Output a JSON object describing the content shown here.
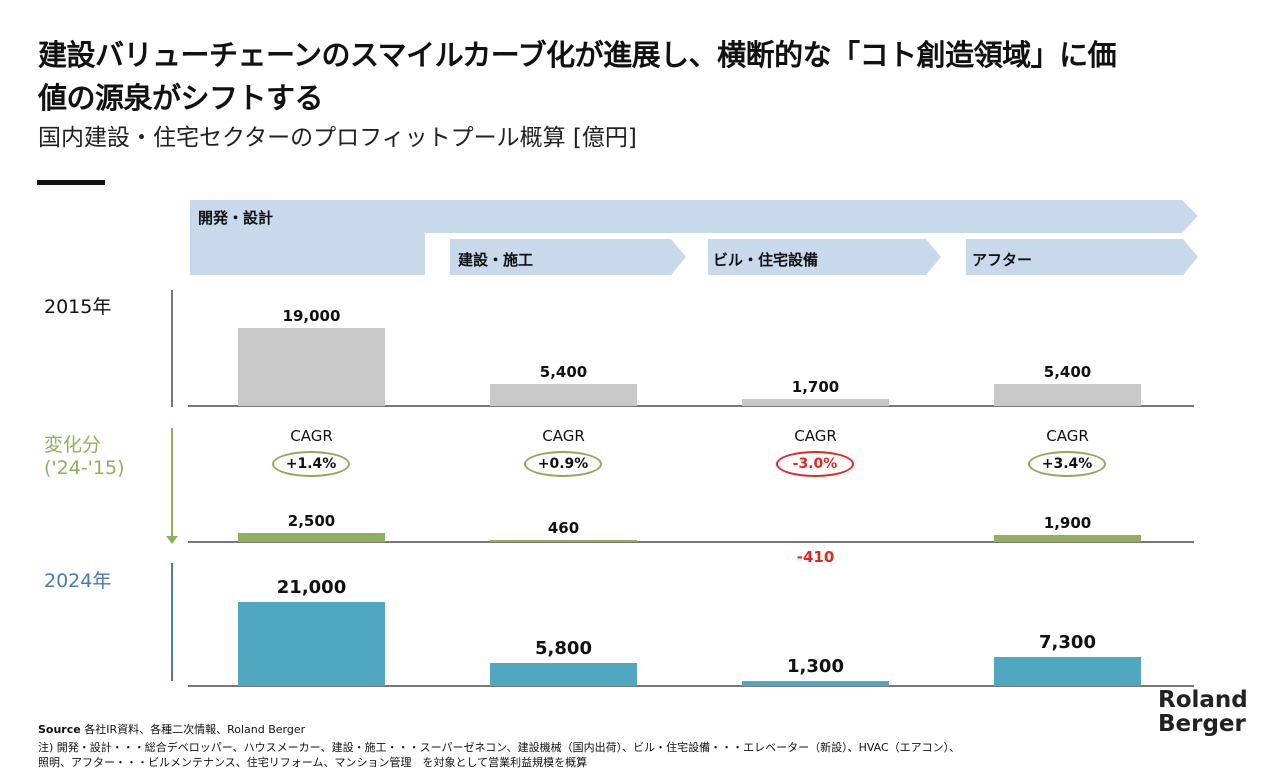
{
  "title": "建設バリューチェーンのスマイルカーブ化が進展し、横断的な「コト創造領域」に価値の源泉がシフトする",
  "subtitle": "国内建設・住宅セクターのプロフィットプール概算 [億円]",
  "segments": [
    "開発・設計",
    "建設・施工",
    "ビル・住宅設備",
    "アフター"
  ],
  "rows": {
    "y2015": "2015年",
    "change": "変化分",
    "change_period": "('24-'15)",
    "y2024": "2024年"
  },
  "cagr_label": "CAGR",
  "colors": {
    "bar2015": "#c8c8c8",
    "change": "#8fb05a",
    "bar2024": "#4fa8c0",
    "negative": "#e8251d",
    "band": "#c9d9ec"
  },
  "chart_data": {
    "type": "bar",
    "categories": [
      "開発・設計",
      "建設・施工",
      "ビル・住宅設備",
      "アフター"
    ],
    "series": [
      {
        "name": "2015年",
        "values": [
          19000,
          5400,
          1700,
          5400
        ],
        "labels": [
          "19,000",
          "5,400",
          "1,700",
          "5,400"
        ]
      },
      {
        "name": "変化分",
        "values": [
          2500,
          460,
          -410,
          1900
        ],
        "labels": [
          "2,500",
          "460",
          "-410",
          "1,900"
        ]
      },
      {
        "name": "2024年",
        "values": [
          21000,
          5800,
          1300,
          7300
        ],
        "labels": [
          "21,000",
          "5,800",
          "1,300",
          "7,300"
        ]
      }
    ],
    "cagr": [
      "+1.4%",
      "+0.9%",
      "-3.0%",
      "+3.4%"
    ]
  },
  "source_label": "Source",
  "source": "各社IR資料、各種二次情報、Roland Berger",
  "note1": "注) 開発・設計・・・総合デベロッパー、ハウスメーカー、建設・施工・・・スーパーゼネコン、建設機械（国内出荷）、ビル・住宅設備・・・エレベーター（新設）、HVAC（エアコン）、",
  "note2": "照明、アフター・・・ビルメンテナンス、住宅リフォーム、マンション管理　を対象として営業利益規模を概算",
  "logo": [
    "Roland",
    "Berger"
  ]
}
